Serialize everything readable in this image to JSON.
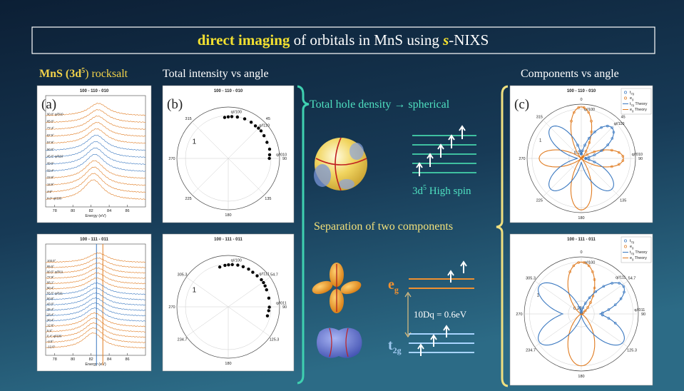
{
  "title": {
    "emphasis": "direct imaging",
    "middle": " of orbitals in MnS using ",
    "italic": "s",
    "end": "-NIXS"
  },
  "headings": {
    "material": {
      "main": "MnS (3d",
      "sup": "5",
      "end": ") rocksalt"
    },
    "intensity": "Total intensity vs angle",
    "components": "Components vs angle"
  },
  "annotations": {
    "hole_density": "Total hole density → spherical",
    "high_spin": {
      "main": "3d",
      "sup": "5",
      "end": " High spin"
    },
    "separation": "Separation of two components",
    "eg": {
      "main": "e",
      "sub": "g"
    },
    "t2g": {
      "main": "t",
      "sub": "2g"
    },
    "splitting": "10Dq = 0.6eV"
  },
  "panels": [
    {
      "type": "spectra",
      "label": "(a)",
      "title": "100 - 110 - 010",
      "xlabel": "Energy (eV)",
      "xlim": [
        77,
        88
      ],
      "xticks": [
        78,
        80,
        82,
        84,
        86
      ],
      "curve_labels": [
        "90.0° q//010",
        "85.0°",
        "77.4°",
        "67.5°",
        "57.6°",
        "50.0°",
        "45.0° q//110",
        "39.9°",
        "32.4°",
        "22.6°",
        "12.5°",
        "4.9°",
        "0.0° q//100"
      ]
    },
    {
      "type": "polar",
      "label": "(b)",
      "title": "100 - 110 - 010",
      "theta_ticks": [
        315,
        45,
        270,
        90,
        225,
        135,
        180
      ],
      "rlim": [
        0,
        1.2
      ],
      "rticks": [
        1
      ],
      "annotations": [
        "q//100",
        "q//110",
        "q//010"
      ],
      "points": {
        "theta": [
          -5,
          0,
          4.9,
          12.5,
          22.6,
          32.4,
          39.9,
          45,
          50,
          57.6,
          67.5,
          77.4,
          85,
          90
        ],
        "r": [
          0.96,
          0.97,
          0.98,
          0.99,
          1.0,
          1.0,
          0.99,
          1.0,
          1.0,
          0.99,
          0.98,
          0.99,
          0.97,
          0.96
        ]
      }
    },
    {
      "type": "polar_components",
      "label": "(c)",
      "title": "100 - 110 - 010",
      "theta_ticks": [
        0,
        45,
        90,
        135,
        180,
        225,
        270,
        315
      ],
      "rlim": [
        0,
        1.1
      ],
      "rticks": [
        1,
        0.25
      ],
      "annotations": [
        "q//100",
        "q//110",
        "q//010"
      ],
      "legend": [
        {
          "main": "t",
          "sub": "2g",
          "color": "#3a78c0"
        },
        {
          "main": "e",
          "sub": "g",
          "color": "#e07b20"
        },
        {
          "main": "t",
          "sub": "2g",
          "end": " Theory",
          "color": "#3a78c0"
        },
        {
          "main": "e",
          "sub": "g",
          "end": " Theory",
          "color": "#e07b20"
        }
      ]
    },
    {
      "type": "spectra",
      "title": "100 - 111 - 011",
      "xlabel": "Energy (eV)",
      "xlim": [
        77,
        88
      ],
      "xticks": [
        78,
        80,
        82,
        84,
        86
      ],
      "curve_labels": [
        "103.0°",
        "95.5°",
        "90.5° q//011",
        "77.9°",
        "66.1°",
        "60.4°",
        "55.5° q//111",
        "50.8°",
        "43.0°",
        "35.4°",
        "28.4°",
        "20.4°",
        "12.9°",
        "5.5°",
        "0.4° q//100",
        "-4.5°",
        "-12.0°"
      ],
      "reference_lines": [
        {
          "x": 82.6,
          "color": "#3a78c0"
        },
        {
          "x": 83.3,
          "color": "#e07b20"
        }
      ]
    },
    {
      "type": "polar",
      "title": "100 - 111 - 011",
      "theta_ticks": [
        305.3,
        54.7,
        270,
        90,
        234.7,
        125.3,
        180
      ],
      "rlim": [
        0,
        1.2
      ],
      "rticks": [
        1
      ],
      "annotations": [
        "q//100",
        "q//111",
        "q//011"
      ],
      "points": {
        "theta": [
          -12,
          -4.5,
          0.4,
          5.5,
          12.9,
          20.4,
          28.4,
          35.4,
          43,
          50.8,
          55.5,
          60.4,
          66.1,
          77.9,
          90.5,
          95.5,
          103
        ],
        "r": [
          0.95,
          0.97,
          0.98,
          0.99,
          1.0,
          1.0,
          1.0,
          0.99,
          0.99,
          1.0,
          1.0,
          0.99,
          0.98,
          0.97,
          0.96,
          0.95,
          0.94
        ]
      }
    },
    {
      "type": "polar_components",
      "title": "100 - 111 - 011",
      "theta_ticks": [
        0,
        54.7,
        90,
        125.3,
        180,
        234.7,
        270,
        305.3
      ],
      "rlim": [
        0,
        1.1
      ],
      "rticks": [
        1,
        0.25
      ],
      "annotations": [
        "q//100",
        "q//111",
        "q//011"
      ],
      "legend": [
        {
          "main": "t",
          "sub": "2g",
          "color": "#3a78c0"
        },
        {
          "main": "e",
          "sub": "g",
          "color": "#e07b20"
        },
        {
          "main": "t",
          "sub": "2g",
          "end": " Theory",
          "color": "#3a78c0"
        },
        {
          "main": "e",
          "sub": "g",
          "end": " Theory",
          "color": "#e07b20"
        }
      ]
    }
  ]
}
